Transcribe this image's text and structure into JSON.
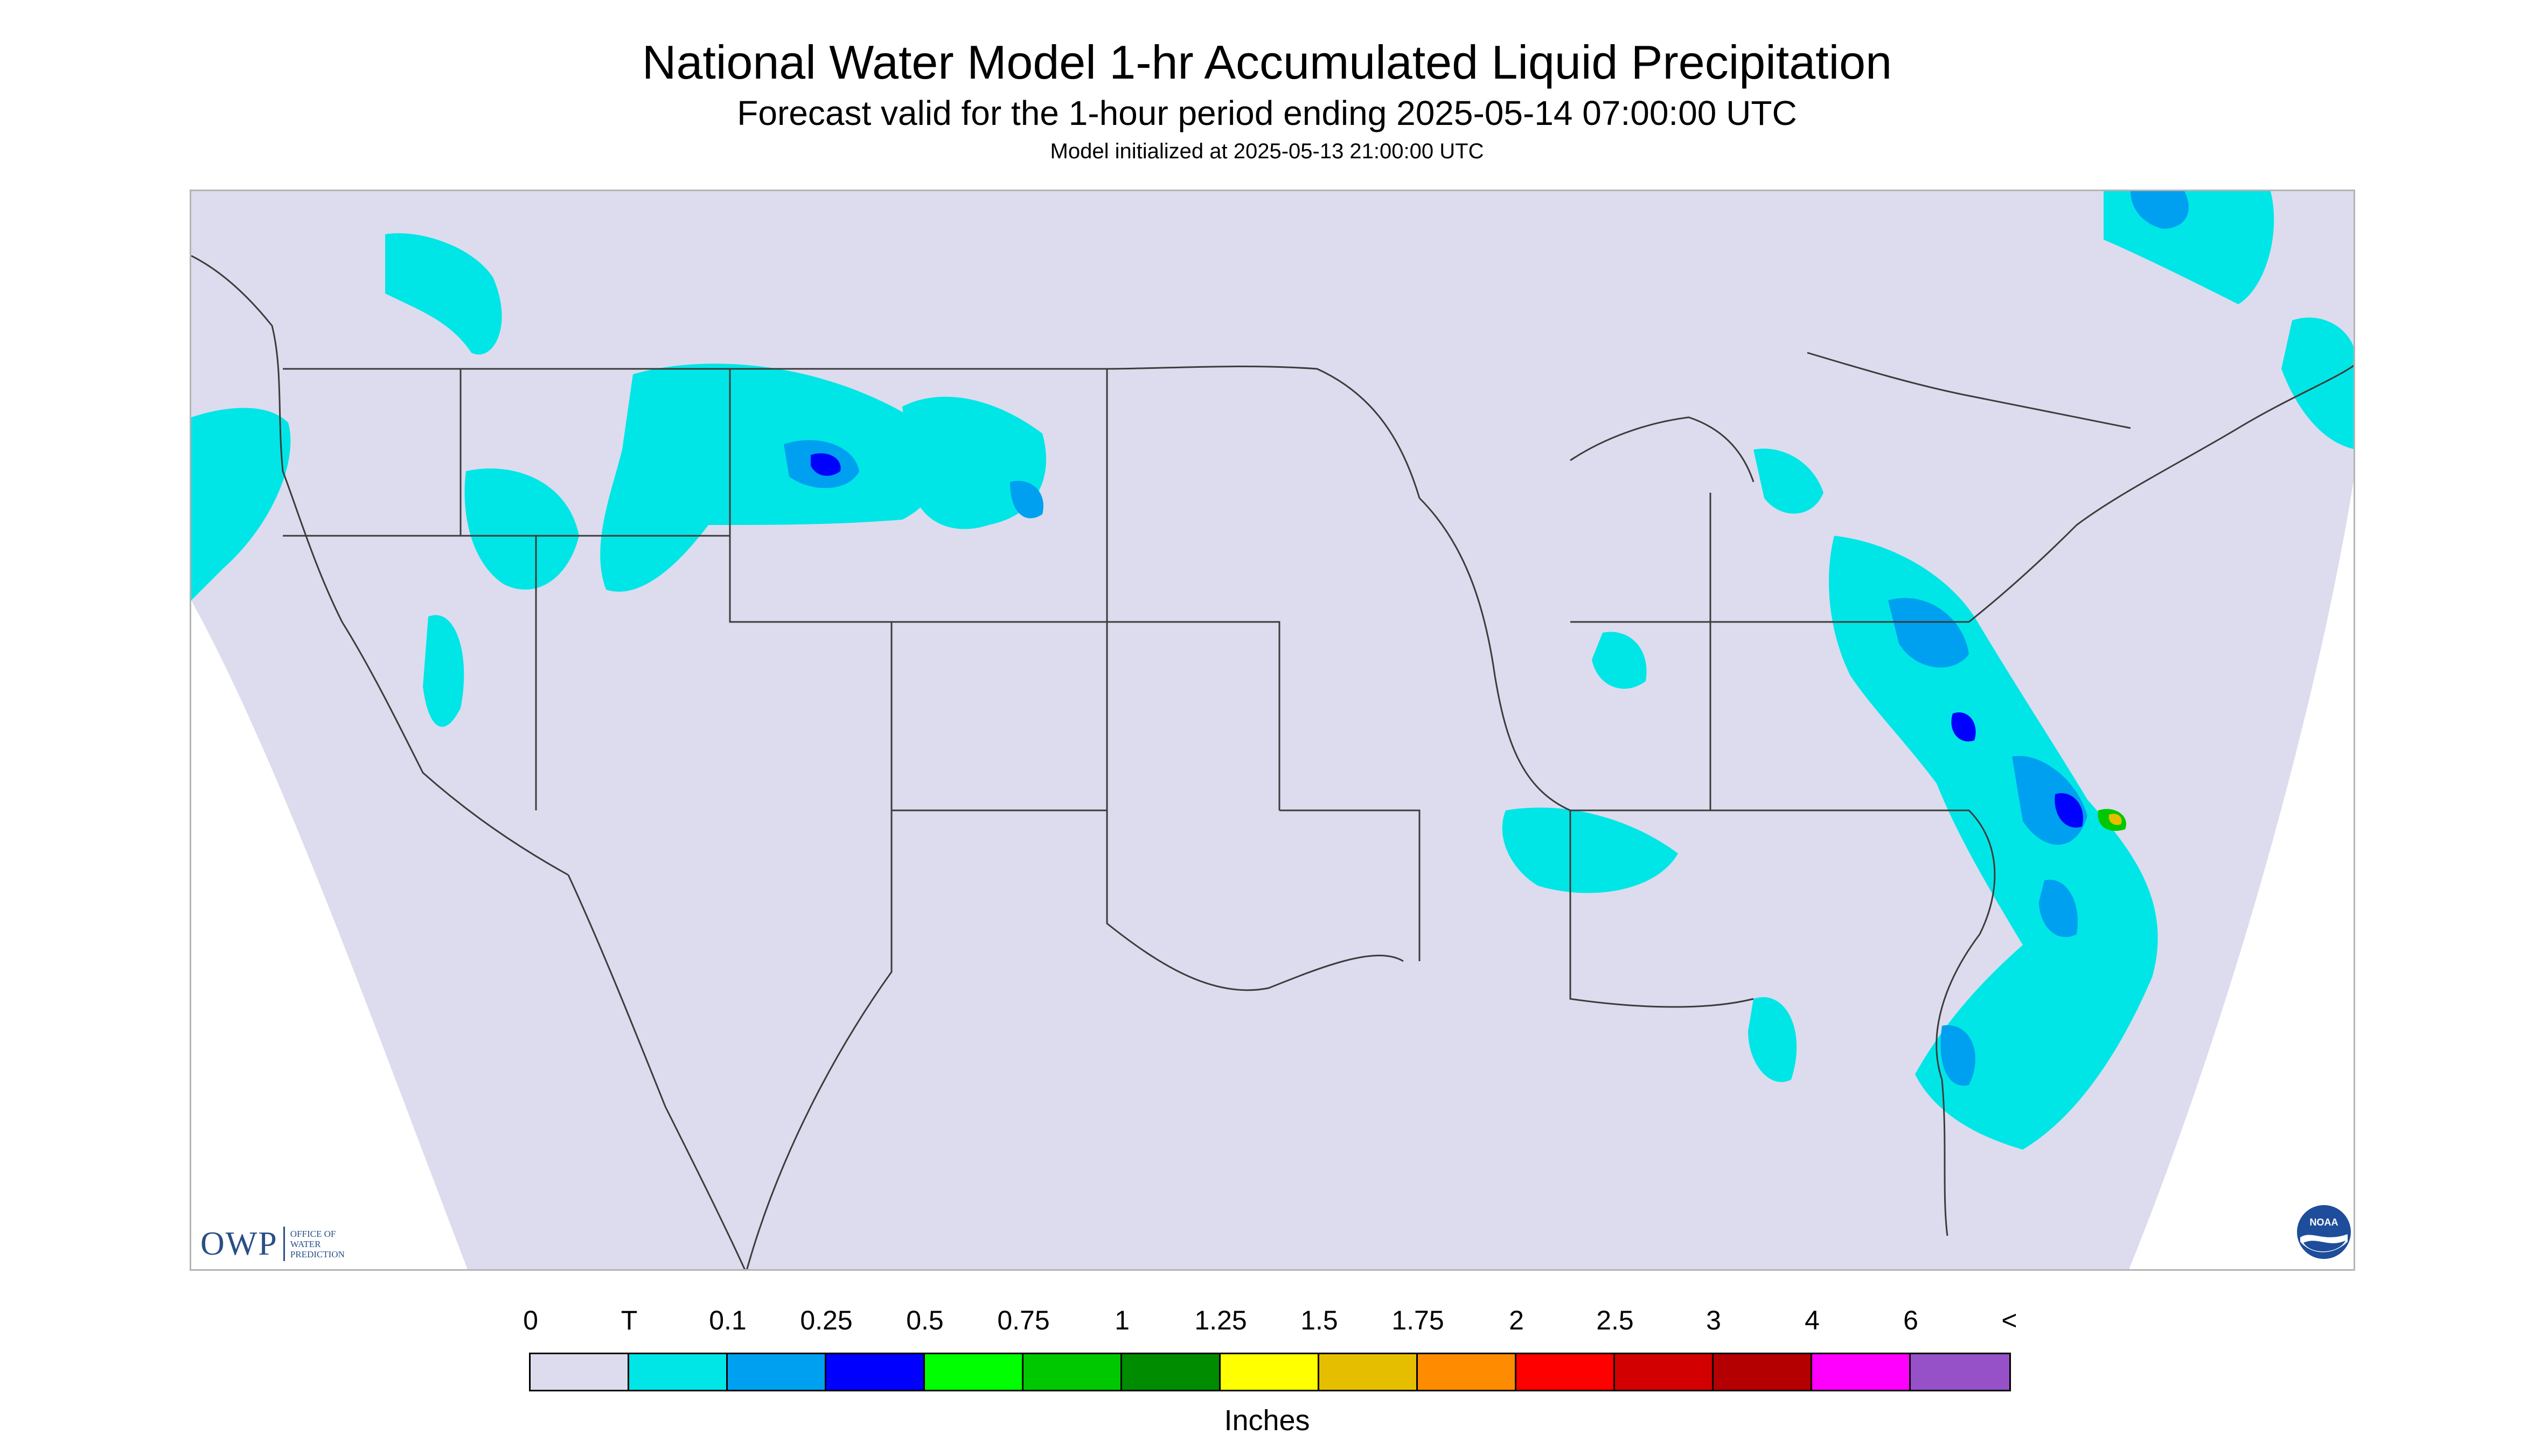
{
  "header": {
    "title": "National Water Model 1-hr Accumulated Liquid Precipitation",
    "subtitle": "Forecast valid for the 1-hour period ending 2025-05-14 07:00:00 UTC",
    "init": "Model initialized at 2025-05-13 21:00:00 UTC"
  },
  "logos": {
    "owp_mark": "OWP",
    "owp_full": "Office of Water Prediction",
    "noaa_mark": "NOAA"
  },
  "legend": {
    "labels": [
      "0",
      "T",
      "0.1",
      "0.25",
      "0.5",
      "0.75",
      "1",
      "1.25",
      "1.5",
      "1.75",
      "2",
      "2.5",
      "3",
      "4",
      "6",
      "<"
    ],
    "colors": [
      "#dcdcee",
      "#00e6e6",
      "#00a0f0",
      "#0000ff",
      "#00ff00",
      "#00c800",
      "#008c00",
      "#ffff00",
      "#e6be00",
      "#ff8c00",
      "#ff0000",
      "#d20000",
      "#b40000",
      "#ff00ff",
      "#9650c8"
    ],
    "units": "Inches"
  },
  "colors": {
    "domain_fill": "#dcdcee",
    "trace": "#00e6e6",
    "light": "#00a0f0",
    "medium": "#0000ff",
    "border_lines": "#3c3c3c"
  }
}
